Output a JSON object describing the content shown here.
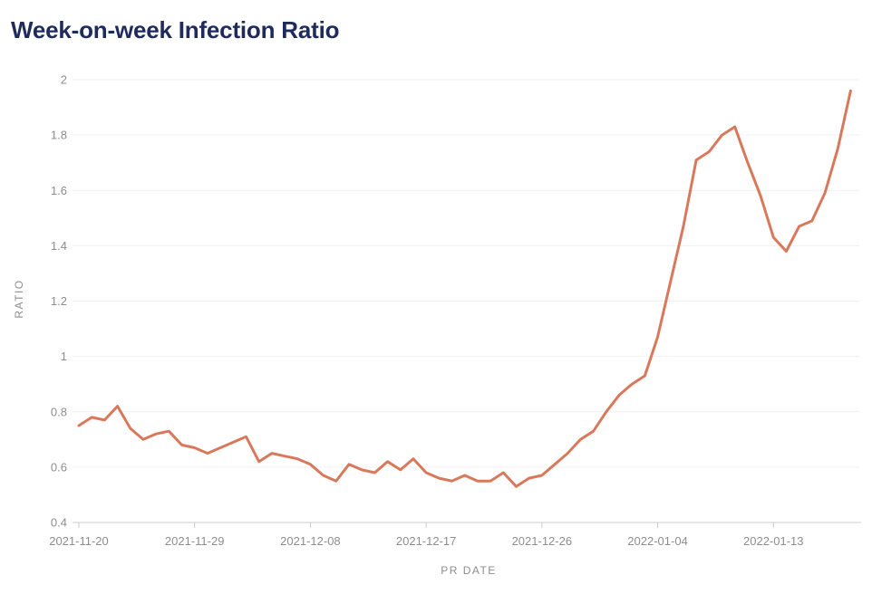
{
  "header": {
    "title": "Week-on-week Infection Ratio"
  },
  "colors": {
    "title": "#1f2b5c",
    "line": "#d9795c",
    "grid": "#f0f0f0",
    "axis_line": "#cccccc",
    "tick_label": "#8e8e8e",
    "background": "#ffffff"
  },
  "chart_data": {
    "type": "line",
    "title": "Week-on-week Infection Ratio",
    "xlabel": "PR DATE",
    "ylabel": "RATIO",
    "ylim": [
      0.4,
      2.0
    ],
    "grid": "horizontal gridlines on, every 0.2",
    "legend": "none",
    "x": [
      "2021-11-20",
      "2021-11-21",
      "2021-11-22",
      "2021-11-23",
      "2021-11-24",
      "2021-11-25",
      "2021-11-26",
      "2021-11-27",
      "2021-11-28",
      "2021-11-29",
      "2021-11-30",
      "2021-12-01",
      "2021-12-02",
      "2021-12-03",
      "2021-12-04",
      "2021-12-05",
      "2021-12-06",
      "2021-12-07",
      "2021-12-08",
      "2021-12-09",
      "2021-12-10",
      "2021-12-11",
      "2021-12-12",
      "2021-12-13",
      "2021-12-14",
      "2021-12-15",
      "2021-12-16",
      "2021-12-17",
      "2021-12-18",
      "2021-12-19",
      "2021-12-20",
      "2021-12-21",
      "2021-12-22",
      "2021-12-23",
      "2021-12-24",
      "2021-12-25",
      "2021-12-26",
      "2021-12-27",
      "2021-12-28",
      "2021-12-29",
      "2021-12-30",
      "2021-12-31",
      "2022-01-01",
      "2022-01-02",
      "2022-01-03",
      "2022-01-04",
      "2022-01-05",
      "2022-01-06",
      "2022-01-07",
      "2022-01-08",
      "2022-01-09",
      "2022-01-10",
      "2022-01-11",
      "2022-01-12",
      "2022-01-13",
      "2022-01-14",
      "2022-01-15",
      "2022-01-16",
      "2022-01-17",
      "2022-01-18",
      "2022-01-19"
    ],
    "values": [
      0.75,
      0.78,
      0.77,
      0.82,
      0.74,
      0.7,
      0.72,
      0.73,
      0.68,
      0.67,
      0.65,
      0.67,
      0.69,
      0.71,
      0.62,
      0.65,
      0.64,
      0.63,
      0.61,
      0.57,
      0.55,
      0.61,
      0.59,
      0.58,
      0.62,
      0.59,
      0.63,
      0.58,
      0.56,
      0.55,
      0.57,
      0.55,
      0.55,
      0.58,
      0.53,
      0.56,
      0.57,
      0.61,
      0.65,
      0.7,
      0.73,
      0.8,
      0.86,
      0.9,
      0.93,
      1.07,
      1.27,
      1.47,
      1.71,
      1.74,
      1.8,
      1.83,
      1.7,
      1.58,
      1.43,
      1.38,
      1.47,
      1.49,
      1.59,
      1.75,
      1.96
    ],
    "x_ticks": [
      {
        "index": 0,
        "label": "2021-11-20"
      },
      {
        "index": 9,
        "label": "2021-11-29"
      },
      {
        "index": 18,
        "label": "2021-12-08"
      },
      {
        "index": 27,
        "label": "2021-12-17"
      },
      {
        "index": 36,
        "label": "2021-12-26"
      },
      {
        "index": 45,
        "label": "2022-01-04"
      },
      {
        "index": 54,
        "label": "2022-01-13"
      }
    ],
    "y_ticks": [
      {
        "value": 0.4,
        "label": "0.4"
      },
      {
        "value": 0.6,
        "label": "0.6"
      },
      {
        "value": 0.8,
        "label": "0.8"
      },
      {
        "value": 1.0,
        "label": "1"
      },
      {
        "value": 1.2,
        "label": "1.2"
      },
      {
        "value": 1.4,
        "label": "1.4"
      },
      {
        "value": 1.6,
        "label": "1.6"
      },
      {
        "value": 1.8,
        "label": "1.8"
      },
      {
        "value": 2.0,
        "label": "2"
      }
    ]
  }
}
